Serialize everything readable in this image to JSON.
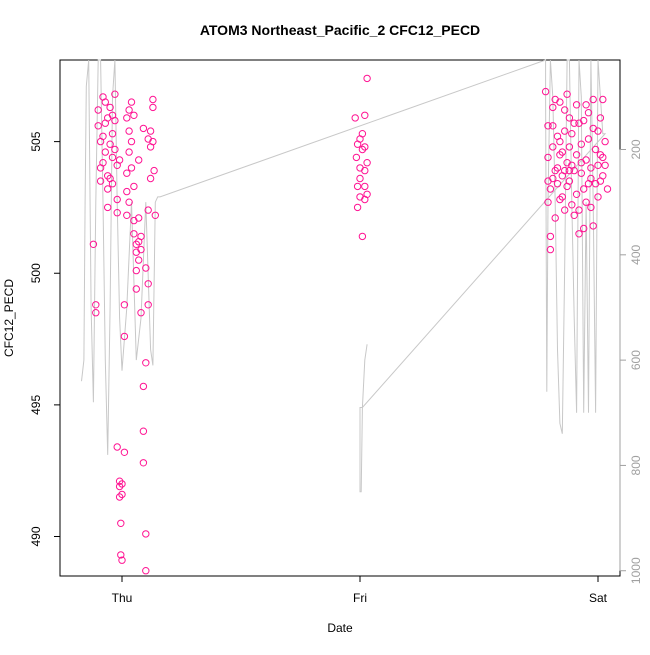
{
  "chart_data": {
    "type": "scatter",
    "title": "ATOM3 Northeast_Pacific_2 CFC12_PECD",
    "xlabel": "Date",
    "ylabel": "CFC12_PECD",
    "x_ticks": [
      "Thu",
      "Fri",
      "Sat"
    ],
    "y_ticks": [
      490,
      495,
      500,
      505
    ],
    "ylim": [
      488.5,
      508.1
    ],
    "secondary_y_ticks": [
      200,
      400,
      600,
      800,
      1000
    ],
    "secondary_ylim": [
      1010,
      30
    ],
    "point_color": "#ff1493",
    "line_color": "#c8c8c8",
    "series": [
      {
        "values": [
          [
            -0.12,
            501.1
          ],
          [
            -0.11,
            498.5
          ],
          [
            -0.11,
            498.8
          ],
          [
            -0.1,
            506.2
          ],
          [
            -0.1,
            505.6
          ],
          [
            -0.09,
            504.0
          ],
          [
            -0.09,
            503.5
          ],
          [
            -0.08,
            506.7
          ],
          [
            -0.08,
            505.2
          ],
          [
            -0.08,
            504.2
          ],
          [
            -0.07,
            506.5
          ],
          [
            -0.07,
            505.7
          ],
          [
            -0.07,
            504.6
          ],
          [
            -0.06,
            503.2
          ],
          [
            -0.06,
            503.7
          ],
          [
            -0.06,
            505.9
          ],
          [
            -0.05,
            506.3
          ],
          [
            -0.05,
            504.9
          ],
          [
            -0.05,
            503.6
          ],
          [
            -0.04,
            506.0
          ],
          [
            -0.04,
            505.3
          ],
          [
            -0.04,
            504.4
          ],
          [
            -0.04,
            503.4
          ],
          [
            -0.03,
            506.8
          ],
          [
            -0.03,
            505.8
          ],
          [
            -0.03,
            504.7
          ],
          [
            -0.02,
            502.3
          ],
          [
            -0.02,
            504.1
          ],
          [
            -0.02,
            493.4
          ],
          [
            -0.01,
            492.1
          ],
          [
            -0.01,
            491.9
          ],
          [
            -0.01,
            491.5
          ],
          [
            -0.005,
            490.5
          ],
          [
            -0.005,
            489.3
          ],
          [
            0.0,
            489.1
          ],
          [
            0.0,
            491.6
          ],
          [
            0.0,
            492.0
          ],
          [
            0.01,
            493.2
          ],
          [
            0.01,
            497.6
          ],
          [
            0.01,
            498.8
          ],
          [
            0.02,
            502.2
          ],
          [
            0.02,
            503.1
          ],
          [
            0.02,
            503.8
          ],
          [
            0.03,
            504.6
          ],
          [
            0.03,
            505.4
          ],
          [
            0.03,
            506.2
          ],
          [
            0.04,
            506.5
          ],
          [
            0.04,
            505.0
          ],
          [
            0.04,
            504.0
          ],
          [
            0.05,
            503.3
          ],
          [
            0.05,
            502.0
          ],
          [
            0.05,
            501.5
          ],
          [
            0.06,
            501.1
          ],
          [
            0.06,
            500.1
          ],
          [
            0.06,
            500.8
          ],
          [
            0.07,
            501.2
          ],
          [
            0.07,
            500.5
          ],
          [
            0.07,
            502.1
          ],
          [
            0.08,
            501.4
          ],
          [
            0.08,
            500.9
          ],
          [
            0.08,
            498.5
          ],
          [
            0.09,
            495.7
          ],
          [
            0.09,
            494.0
          ],
          [
            0.09,
            492.8
          ],
          [
            0.1,
            490.1
          ],
          [
            0.1,
            488.7
          ],
          [
            0.1,
            496.6
          ],
          [
            0.11,
            499.6
          ],
          [
            0.11,
            498.8
          ],
          [
            0.11,
            502.4
          ],
          [
            0.12,
            503.6
          ],
          [
            0.12,
            504.8
          ],
          [
            0.12,
            505.4
          ],
          [
            0.13,
            506.3
          ],
          [
            0.13,
            506.6
          ],
          [
            0.13,
            505.0
          ],
          [
            0.135,
            503.9
          ],
          [
            0.14,
            502.2
          ],
          [
            -0.06,
            502.5
          ],
          [
            -0.01,
            504.3
          ],
          [
            0.02,
            505.9
          ],
          [
            0.05,
            506.0
          ],
          [
            0.07,
            504.3
          ],
          [
            0.09,
            505.5
          ],
          [
            0.11,
            505.1
          ],
          [
            -0.09,
            505.0
          ],
          [
            -0.02,
            502.8
          ],
          [
            0.03,
            502.7
          ],
          [
            0.06,
            499.4
          ],
          [
            0.1,
            500.2
          ],
          [
            0.98,
            505.9
          ],
          [
            0.985,
            504.4
          ],
          [
            0.99,
            503.3
          ],
          [
            0.99,
            502.5
          ],
          [
            1.0,
            504.0
          ],
          [
            1.0,
            503.6
          ],
          [
            1.0,
            502.9
          ],
          [
            1.01,
            505.3
          ],
          [
            1.01,
            504.7
          ],
          [
            1.01,
            501.4
          ],
          [
            1.02,
            506.0
          ],
          [
            1.02,
            504.8
          ],
          [
            1.02,
            503.9
          ],
          [
            1.02,
            502.8
          ],
          [
            1.03,
            507.4
          ],
          [
            1.03,
            504.2
          ],
          [
            1.03,
            503.0
          ],
          [
            0.99,
            504.9
          ],
          [
            1.0,
            505.1
          ],
          [
            1.02,
            503.3
          ],
          [
            1.78,
            506.9
          ],
          [
            1.79,
            504.4
          ],
          [
            1.79,
            503.5
          ],
          [
            1.79,
            502.7
          ],
          [
            1.8,
            501.4
          ],
          [
            1.8,
            500.9
          ],
          [
            1.8,
            503.2
          ],
          [
            1.81,
            504.8
          ],
          [
            1.81,
            505.6
          ],
          [
            1.81,
            506.3
          ],
          [
            1.82,
            503.9
          ],
          [
            1.82,
            502.1
          ],
          [
            1.83,
            505.2
          ],
          [
            1.83,
            504.0
          ],
          [
            1.83,
            503.4
          ],
          [
            1.84,
            506.5
          ],
          [
            1.84,
            505.0
          ],
          [
            1.84,
            502.8
          ],
          [
            1.85,
            504.6
          ],
          [
            1.85,
            503.7
          ],
          [
            1.86,
            506.2
          ],
          [
            1.86,
            505.4
          ],
          [
            1.86,
            502.4
          ],
          [
            1.87,
            504.2
          ],
          [
            1.87,
            503.3
          ],
          [
            1.88,
            505.9
          ],
          [
            1.88,
            504.8
          ],
          [
            1.88,
            503.5
          ],
          [
            1.89,
            505.3
          ],
          [
            1.89,
            502.6
          ],
          [
            1.9,
            503.9
          ],
          [
            1.9,
            505.7
          ],
          [
            1.91,
            504.5
          ],
          [
            1.91,
            503.0
          ],
          [
            1.91,
            506.4
          ],
          [
            1.92,
            501.5
          ],
          [
            1.92,
            502.4
          ],
          [
            1.93,
            504.9
          ],
          [
            1.93,
            503.8
          ],
          [
            1.94,
            505.8
          ],
          [
            1.94,
            503.2
          ],
          [
            1.95,
            504.3
          ],
          [
            1.95,
            502.7
          ],
          [
            1.96,
            506.1
          ],
          [
            1.96,
            505.1
          ],
          [
            1.97,
            504.0
          ],
          [
            1.97,
            503.6
          ],
          [
            1.98,
            506.6
          ],
          [
            1.98,
            505.5
          ],
          [
            1.99,
            504.7
          ],
          [
            1.99,
            503.4
          ],
          [
            2.0,
            504.1
          ],
          [
            2.0,
            502.9
          ],
          [
            2.01,
            505.9
          ],
          [
            2.01,
            504.5
          ],
          [
            2.02,
            503.7
          ],
          [
            2.02,
            506.6
          ],
          [
            2.03,
            505.0
          ],
          [
            2.03,
            504.1
          ],
          [
            2.04,
            503.2
          ],
          [
            1.79,
            505.6
          ],
          [
            1.82,
            506.6
          ],
          [
            1.85,
            502.9
          ],
          [
            1.87,
            506.8
          ],
          [
            1.89,
            504.1
          ],
          [
            1.92,
            505.7
          ],
          [
            1.95,
            506.4
          ],
          [
            1.97,
            502.5
          ],
          [
            2.0,
            505.4
          ],
          [
            2.02,
            504.4
          ],
          [
            1.81,
            503.6
          ],
          [
            1.84,
            504.5
          ],
          [
            1.86,
            503.9
          ],
          [
            1.9,
            502.2
          ],
          [
            1.93,
            504.2
          ],
          [
            1.96,
            503.4
          ],
          [
            1.98,
            501.8
          ],
          [
            2.01,
            503.5
          ],
          [
            1.94,
            501.7
          ],
          [
            1.88,
            503.9
          ]
        ]
      },
      {
        "axis": "secondary",
        "values": [
          [
            -0.17,
            640
          ],
          [
            -0.165,
            620
          ],
          [
            -0.16,
            600
          ],
          [
            -0.155,
            300
          ],
          [
            -0.15,
            80
          ],
          [
            -0.14,
            30
          ],
          [
            -0.13,
            500
          ],
          [
            -0.12,
            680
          ],
          [
            -0.11,
            300
          ],
          [
            -0.1,
            30
          ],
          [
            -0.09,
            30
          ],
          [
            -0.08,
            300
          ],
          [
            -0.07,
            600
          ],
          [
            -0.06,
            780
          ],
          [
            -0.05,
            500
          ],
          [
            -0.04,
            100
          ],
          [
            -0.03,
            30
          ],
          [
            -0.02,
            300
          ],
          [
            -0.01,
            520
          ],
          [
            0.0,
            620
          ],
          [
            0.02,
            500
          ],
          [
            0.04,
            300
          ],
          [
            0.06,
            600
          ],
          [
            0.08,
            520
          ],
          [
            0.1,
            300
          ],
          [
            0.12,
            580
          ],
          [
            0.13,
            610
          ],
          [
            0.14,
            300
          ],
          [
            0.15,
            290
          ],
          [
            0.16,
            290
          ],
          [
            1.78,
            30
          ],
          [
            1.78,
            100
          ],
          [
            1.785,
            660
          ],
          [
            1.79,
            300
          ],
          [
            1.8,
            30
          ],
          [
            1.81,
            100
          ],
          [
            1.82,
            300
          ],
          [
            1.83,
            580
          ],
          [
            1.84,
            720
          ],
          [
            1.85,
            740
          ],
          [
            1.86,
            420
          ],
          [
            1.87,
            30
          ],
          [
            1.88,
            30
          ],
          [
            1.89,
            300
          ],
          [
            1.9,
            520
          ],
          [
            1.91,
            700
          ],
          [
            1.92,
            30
          ],
          [
            1.93,
            100
          ],
          [
            1.94,
            700
          ],
          [
            1.95,
            300
          ],
          [
            1.96,
            700
          ],
          [
            1.97,
            30
          ],
          [
            1.98,
            300
          ],
          [
            1.99,
            700
          ],
          [
            2.0,
            30
          ],
          [
            2.01,
            100
          ],
          [
            2.02,
            170
          ],
          [
            2.03,
            170
          ],
          [
            1.01,
            690
          ],
          [
            1.0,
            690
          ],
          [
            1.0,
            850
          ],
          [
            1.005,
            850
          ],
          [
            1.01,
            690
          ],
          [
            1.02,
            600
          ],
          [
            1.03,
            570
          ]
        ]
      }
    ]
  }
}
